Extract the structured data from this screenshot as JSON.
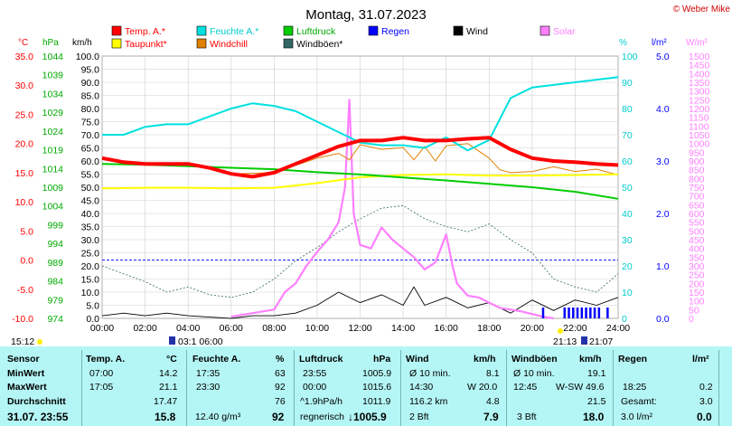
{
  "title": "Montag, 31.07.2023",
  "copyright": "© Weber Mike",
  "colors": {
    "temp": "#ff0000",
    "humidity": "#00e0e0",
    "pressure": "#00cc00",
    "dewpoint": "#ffff00",
    "windchill": "#e08000",
    "rain": "#0000ff",
    "wind": "#000000",
    "gust": "#336666",
    "solar": "#ff80ff",
    "stats_bg": "#b4f6f5"
  },
  "legend": [
    {
      "label": "Temp. A.*",
      "color": "#ff0000",
      "text_color": "#ff0000"
    },
    {
      "label": "Feuchte A.*",
      "color": "#00e0e0",
      "text_color": "#00cccc"
    },
    {
      "label": "Luftdruck",
      "color": "#00cc00",
      "text_color": "#00aa00"
    },
    {
      "label": "Regen",
      "color": "#0000ff",
      "text_color": "#0000ff"
    },
    {
      "label": "Wind",
      "color": "#000000",
      "text_color": "#000000"
    },
    {
      "label": "Solar",
      "color": "#ff80ff",
      "text_color": "#ff80ff"
    },
    {
      "label": "Taupunkt*",
      "color": "#ffff00",
      "text_color": "#ff0000"
    },
    {
      "label": "Windchill",
      "color": "#e08000",
      "text_color": "#ff0000"
    },
    {
      "label": "Windböen*",
      "color": "#336666",
      "text_color": "#000000"
    }
  ],
  "axis_units": {
    "temp": "°C",
    "pressure": "hPa",
    "wind": "km/h",
    "humidity": "%",
    "rain": "l/m²",
    "solar": "W/m²"
  },
  "chart_data": {
    "type": "line",
    "title": "Montag, 31.07.2023",
    "x_ticks": [
      "00:00",
      "02:00",
      "04:00",
      "06:00",
      "08:00",
      "10:00",
      "12:00",
      "14:00",
      "16:00",
      "18:00",
      "20:00",
      "22:00",
      "24:00"
    ],
    "axes": {
      "temp": {
        "range": [
          -10,
          35
        ],
        "ticks": [
          "35.0",
          "30.0",
          "25.0",
          "20.0",
          "15.0",
          "10.0",
          "5.0",
          "0.0",
          "-5.0",
          "-10.0"
        ]
      },
      "pressure": {
        "range": [
          974,
          1044
        ],
        "ticks": [
          "1044",
          "1039",
          "1034",
          "1029",
          "1024",
          "1019",
          "1014",
          "1009",
          "1004",
          "999",
          "994",
          "989",
          "984",
          "979",
          "974"
        ]
      },
      "wind": {
        "range": [
          0,
          100
        ],
        "ticks": [
          "100.0",
          "95.0",
          "90.0",
          "85.0",
          "80.0",
          "75.0",
          "70.0",
          "65.0",
          "60.0",
          "55.0",
          "50.0",
          "45.0",
          "40.0",
          "35.0",
          "30.0",
          "25.0",
          "20.0",
          "15.0",
          "10.0",
          "5.0",
          "0.0"
        ]
      },
      "humidity": {
        "range": [
          0,
          100
        ],
        "ticks": [
          "100",
          "90",
          "80",
          "70",
          "60",
          "50",
          "40",
          "30",
          "20",
          "10",
          "0"
        ]
      },
      "rain": {
        "range": [
          0,
          5
        ],
        "ticks": [
          "5.0",
          "4.0",
          "3.0",
          "2.0",
          "1.0",
          "0.0"
        ]
      },
      "solar": {
        "range": [
          0,
          1500
        ],
        "ticks": [
          "1500",
          "1450",
          "1400",
          "1350",
          "1300",
          "1250",
          "1200",
          "1150",
          "1100",
          "1050",
          "1000",
          "950",
          "900",
          "850",
          "800",
          "750",
          "700",
          "650",
          "600",
          "550",
          "500",
          "450",
          "400",
          "350",
          "300",
          "250",
          "200",
          "150",
          "100",
          "50",
          "0"
        ]
      }
    },
    "series": [
      {
        "name": "Temp. A.*",
        "axis": "temp",
        "x": [
          0,
          1,
          2,
          3,
          4,
          5,
          6,
          7,
          8,
          9,
          10,
          11,
          12,
          13,
          14,
          15,
          16,
          17,
          18,
          19,
          20,
          21,
          22,
          23,
          24
        ],
        "values": [
          17.5,
          16.8,
          16.5,
          16.5,
          16.5,
          15.8,
          14.8,
          14.3,
          15.0,
          16.5,
          18.0,
          19.5,
          20.5,
          20.5,
          21.0,
          20.5,
          20.5,
          20.8,
          21.0,
          19.0,
          17.5,
          17.0,
          16.8,
          16.5,
          16.3
        ]
      },
      {
        "name": "Feuchte A.*",
        "axis": "humidity",
        "x": [
          0,
          1,
          2,
          3,
          4,
          5,
          6,
          7,
          8,
          9,
          10,
          11,
          12,
          13,
          14,
          15,
          16,
          17,
          18,
          19,
          20,
          21,
          22,
          23,
          24
        ],
        "values": [
          70,
          70,
          73,
          74,
          74,
          77,
          80,
          82,
          81,
          79,
          75,
          71,
          67,
          66,
          66,
          65,
          69,
          64,
          68,
          84,
          88,
          89,
          90,
          91,
          92
        ]
      },
      {
        "name": "Luftdruck",
        "axis": "pressure",
        "x": [
          0,
          2,
          4,
          6,
          8,
          10,
          12,
          14,
          16,
          18,
          20,
          22,
          24
        ],
        "values": [
          1015.2,
          1015.0,
          1014.6,
          1014.2,
          1013.8,
          1013.0,
          1012.4,
          1011.6,
          1010.8,
          1009.9,
          1009.0,
          1007.8,
          1005.9
        ]
      },
      {
        "name": "Taupunkt*",
        "axis": "temp",
        "x": [
          0,
          2,
          4,
          6,
          8,
          10,
          12,
          14,
          16,
          18,
          20,
          22,
          24
        ],
        "values": [
          12.3,
          12.4,
          12.4,
          12.3,
          12.4,
          13.2,
          14.2,
          14.6,
          14.7,
          14.5,
          14.5,
          14.6,
          14.7
        ]
      },
      {
        "name": "Windchill",
        "axis": "temp",
        "x": [
          0,
          2,
          4,
          6,
          8,
          10,
          11,
          11.5,
          12,
          13,
          14,
          14.5,
          15,
          15.5,
          16,
          17,
          18,
          18.5,
          19,
          20,
          21,
          22,
          23,
          24
        ],
        "values": [
          17.5,
          16.5,
          16.5,
          14.8,
          15.0,
          17.5,
          18.3,
          17.2,
          19.8,
          19.0,
          19.3,
          17.2,
          19.5,
          17.0,
          19.6,
          20.0,
          17.5,
          15.5,
          15.0,
          15.2,
          16.0,
          15.2,
          15.6,
          14.6
        ]
      },
      {
        "name": "Wind",
        "axis": "wind",
        "x": [
          0,
          1,
          2,
          3,
          4,
          5,
          6,
          7,
          8,
          9,
          10,
          11,
          12,
          13,
          14,
          14.5,
          15,
          16,
          17,
          18,
          19,
          20,
          21,
          22,
          23,
          24
        ],
        "values": [
          1,
          2,
          1,
          2,
          1,
          0.5,
          0,
          1,
          1,
          2,
          5,
          10,
          6,
          9,
          5,
          12,
          5,
          8,
          4,
          6,
          2,
          7,
          3,
          7,
          5,
          8
        ]
      },
      {
        "name": "Windböen*",
        "axis": "wind",
        "x": [
          0,
          1,
          2,
          3,
          4,
          5,
          6,
          7,
          8,
          9,
          10,
          11,
          12,
          13,
          14,
          15,
          16,
          17,
          18,
          19,
          20,
          21,
          22,
          23,
          24
        ],
        "values": [
          20,
          17,
          14,
          10,
          12,
          9,
          8,
          10,
          15,
          22,
          27,
          33,
          38,
          42,
          43,
          38,
          35,
          33,
          36,
          30,
          25,
          15,
          12,
          10,
          17
        ]
      },
      {
        "name": "Solar",
        "axis": "solar",
        "x": [
          6,
          7,
          8,
          8.5,
          9,
          9.5,
          10,
          10.5,
          11,
          11.3,
          11.5,
          11.7,
          12,
          12.5,
          13,
          13.5,
          14,
          14.5,
          15,
          15.5,
          16,
          16.3,
          16.5,
          17,
          17.5,
          18,
          18.5,
          19,
          19.5,
          20,
          20.5,
          21
        ],
        "values": [
          10,
          30,
          50,
          150,
          200,
          300,
          380,
          450,
          550,
          750,
          1250,
          600,
          420,
          400,
          520,
          450,
          400,
          350,
          280,
          320,
          480,
          300,
          200,
          130,
          120,
          90,
          60,
          50,
          40,
          25,
          10,
          0
        ]
      }
    ],
    "rain_bars_x": [
      20.5,
      21.5,
      21.7,
      21.9,
      22.1,
      22.3,
      22.5,
      22.7,
      22.9,
      23.1,
      23.5
    ]
  },
  "status": {
    "left_time": "15:12",
    "marker1": "03:1 06:00",
    "marker2": "21:13",
    "marker3": "21:07"
  },
  "stats": {
    "row_labels": [
      "Sensor",
      "MinWert",
      "MaxWert",
      "Durchschnitt",
      "31.07. 23:55"
    ],
    "temp": {
      "header": "Temp. A.",
      "unit": "°C",
      "min_time": "07:00",
      "min": "14.2",
      "max_time": "17:05",
      "max": "21.1",
      "avg": "17.47",
      "current": "15.8"
    },
    "humidity": {
      "header": "Feuchte A.",
      "unit": "%",
      "min_time": "17:35",
      "min": "63",
      "max_time": "23:30",
      "max": "92",
      "avg": "76",
      "current_abs": "12.40 g/m³",
      "current": "92"
    },
    "pressure": {
      "header": "Luftdruck",
      "unit": "hPa",
      "min_time": "23:55",
      "min": "1005.9",
      "max_time": "00:00",
      "max": "1015.6",
      "trend": "^1.9hPa/h",
      "avg": "1011.9",
      "forecast": "regnerisch",
      "current": "1005.9"
    },
    "wind": {
      "header": "Wind",
      "unit": "km/h",
      "r1_label": "Ø 10 min.",
      "r1": "8.1",
      "r2_time": "14:30",
      "r2": "W 20.0",
      "r3_label": "116.2 km",
      "r3": "4.8",
      "bft": "2 Bft",
      "current": "7.9"
    },
    "gust": {
      "header": "Windböen",
      "unit": "km/h",
      "r1_label": "Ø 10 min.",
      "r1": "19.1",
      "r2_time": "12:45",
      "r2": "W-SW 49.6",
      "r3": "21.5",
      "bft": "3 Bft",
      "current": "18.0"
    },
    "rain": {
      "header": "Regen",
      "unit": "l/m²",
      "r2_time": "18:25",
      "r2": "0.2",
      "r3_label": "Gesamt:",
      "r3": "3.0",
      "current": "3.0 l/m²",
      "current_b": "0.0"
    }
  }
}
